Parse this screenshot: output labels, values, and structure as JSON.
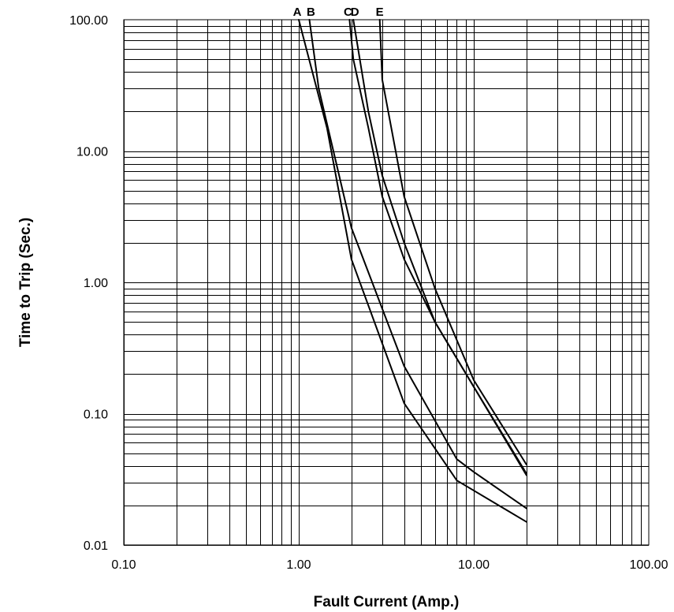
{
  "chart_data": {
    "type": "line",
    "title": "",
    "xlabel": "Fault Current (Amp.)",
    "ylabel": "Time to Trip (Sec.)",
    "x_scale": "log",
    "y_scale": "log",
    "xlim": [
      0.1,
      100
    ],
    "ylim": [
      0.01,
      100
    ],
    "grid": true,
    "x_ticks": [
      {
        "value": 0.1,
        "label": "0.10"
      },
      {
        "value": 1,
        "label": "1.00"
      },
      {
        "value": 10,
        "label": "10.00"
      },
      {
        "value": 100,
        "label": "100.00"
      }
    ],
    "y_ticks": [
      {
        "value": 0.01,
        "label": "0.01"
      },
      {
        "value": 0.1,
        "label": "0.10"
      },
      {
        "value": 1,
        "label": "1.00"
      },
      {
        "value": 10,
        "label": "10.00"
      },
      {
        "value": 100,
        "label": "100.00"
      }
    ],
    "series": [
      {
        "name": "A",
        "points": [
          [
            1.0,
            100
          ],
          [
            1.45,
            15
          ],
          [
            2.0,
            1.5
          ],
          [
            4.0,
            0.12
          ],
          [
            8.0,
            0.031
          ],
          [
            20.0,
            0.015
          ]
        ]
      },
      {
        "name": "B",
        "points": [
          [
            1.15,
            100
          ],
          [
            1.3,
            30
          ],
          [
            2.0,
            2.6
          ],
          [
            4.0,
            0.23
          ],
          [
            8.0,
            0.045
          ],
          [
            10.0,
            0.036
          ],
          [
            20.0,
            0.019
          ]
        ]
      },
      {
        "name": "C",
        "points": [
          [
            1.95,
            100
          ],
          [
            2.05,
            50
          ],
          [
            2.5,
            15
          ],
          [
            3.0,
            4.5
          ],
          [
            4.0,
            1.5
          ],
          [
            6.0,
            0.5
          ],
          [
            10.0,
            0.16
          ],
          [
            20.0,
            0.035
          ]
        ]
      },
      {
        "name": "D",
        "points": [
          [
            2.05,
            100
          ],
          [
            2.5,
            20
          ],
          [
            3.0,
            6.5
          ],
          [
            4.0,
            2.0
          ],
          [
            6.0,
            0.5
          ],
          [
            10.0,
            0.16
          ],
          [
            20.0,
            0.034
          ]
        ]
      },
      {
        "name": "E",
        "points": [
          [
            2.9,
            100
          ],
          [
            3.0,
            35
          ],
          [
            4.0,
            4.5
          ],
          [
            6.0,
            0.9
          ],
          [
            10.0,
            0.18
          ],
          [
            20.0,
            0.041
          ]
        ]
      }
    ]
  }
}
